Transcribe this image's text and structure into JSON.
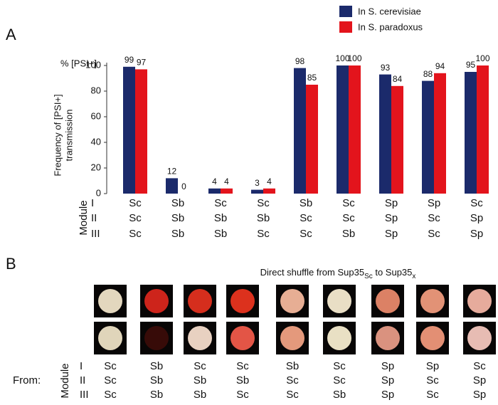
{
  "panel_a": {
    "label": "A"
  },
  "chart_data": {
    "type": "bar",
    "y_header": "% [PSI+]",
    "ylabel": [
      "Frequency of [PSI+]",
      "transmission"
    ],
    "module_label": "Module",
    "module_rows": [
      "I",
      "II",
      "III"
    ],
    "categories": [
      [
        "Sc",
        "Sc",
        "Sc"
      ],
      [
        "Sb",
        "Sb",
        "Sb"
      ],
      [
        "Sc",
        "Sb",
        "Sb"
      ],
      [
        "Sc",
        "Sb",
        "Sc"
      ],
      [
        "Sb",
        "Sc",
        "Sc"
      ],
      [
        "Sc",
        "Sc",
        "Sb"
      ],
      [
        "Sp",
        "Sp",
        "Sp"
      ],
      [
        "Sp",
        "Sc",
        "Sc"
      ],
      [
        "Sc",
        "Sp",
        "Sp"
      ]
    ],
    "series": [
      {
        "name": "In S. cerevisiae",
        "color": "#1b2a6b",
        "values": [
          99,
          12,
          4,
          3,
          98,
          100,
          93,
          88,
          95
        ]
      },
      {
        "name": "In S. paradoxus",
        "color": "#e3141c",
        "values": [
          97,
          0,
          4,
          4,
          85,
          100,
          84,
          94,
          100
        ]
      }
    ],
    "ylim": [
      0,
      100
    ],
    "yticks": [
      0,
      20,
      40,
      60,
      80,
      100
    ]
  },
  "panel_b": {
    "label": "B",
    "title_parts": [
      "Direct shuffle from Sup35",
      "Sc",
      " to Sup35",
      "x"
    ],
    "from_label": "From:"
  }
}
